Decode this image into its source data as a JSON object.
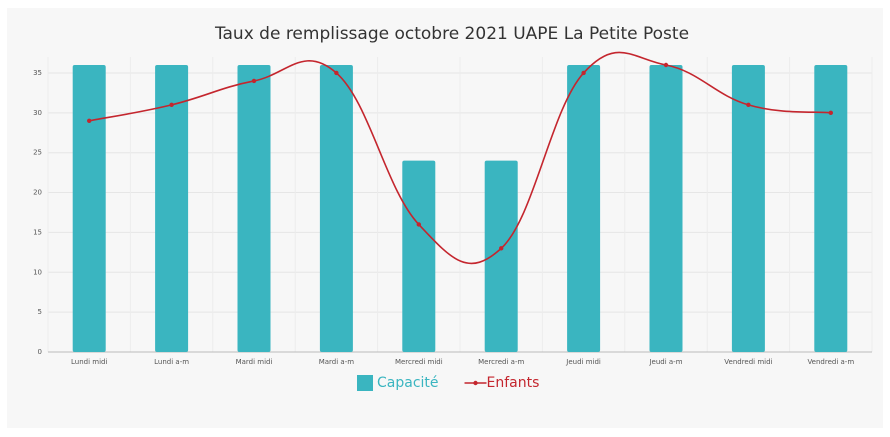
{
  "chart_data": {
    "type": "combo",
    "title": "Taux de remplissage octobre 2021 UAPE La Petite Poste",
    "categories": [
      "Lundi midi",
      "Lundi a-m",
      "Mardi midi",
      "Mardi a-m",
      "Mercredi midi",
      "Mercredi a-m",
      "Jeudi midi",
      "Jeudi a-m",
      "Vendredi midi",
      "Vendredi a-m"
    ],
    "series": [
      {
        "name": "Capacité",
        "type": "bar",
        "color": "#3ab5c0",
        "values": [
          36,
          36,
          36,
          36,
          24,
          24,
          36,
          36,
          36,
          36
        ]
      },
      {
        "name": "Enfants",
        "type": "line",
        "color": "#c4262e",
        "values": [
          29,
          31,
          34,
          35,
          16,
          13,
          35,
          36,
          31,
          30
        ]
      }
    ],
    "ylim": [
      0,
      36
    ],
    "yticks": [
      0,
      5,
      10,
      15,
      20,
      25,
      30,
      35
    ],
    "grid": true,
    "legend": "bottom"
  }
}
